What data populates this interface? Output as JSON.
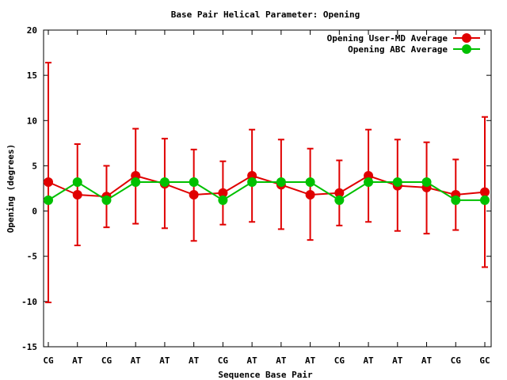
{
  "chart_data": {
    "type": "line",
    "title": "Base Pair Helical Parameter: Opening",
    "xlabel": "Sequence Base Pair",
    "ylabel": "Opening (degrees)",
    "ylim": [
      -15,
      20
    ],
    "yticks": [
      -15,
      -10,
      -5,
      0,
      5,
      10,
      15,
      20
    ],
    "categories": [
      "CG",
      "AT",
      "CG",
      "AT",
      "AT",
      "AT",
      "CG",
      "AT",
      "AT",
      "AT",
      "CG",
      "AT",
      "AT",
      "AT",
      "CG",
      "GC"
    ],
    "grid": false,
    "legend_position": "top-right",
    "series": [
      {
        "name": "Opening User-MD Average",
        "color": "#e00000",
        "marker": "circle",
        "values": [
          3.2,
          1.8,
          1.6,
          3.9,
          3.0,
          1.8,
          2.0,
          3.9,
          2.9,
          1.8,
          2.0,
          3.9,
          2.8,
          2.6,
          1.8,
          2.1
        ],
        "error_low": [
          -10.1,
          -3.8,
          -1.8,
          -1.4,
          -1.9,
          -3.3,
          -1.5,
          -1.2,
          -2.0,
          -3.2,
          -1.6,
          -1.2,
          -2.2,
          -2.5,
          -2.1,
          -6.2
        ],
        "error_high": [
          16.4,
          7.4,
          5.0,
          9.1,
          8.0,
          6.8,
          5.5,
          9.0,
          7.9,
          6.9,
          5.6,
          9.0,
          7.9,
          7.6,
          5.7,
          10.4
        ]
      },
      {
        "name": "Opening ABC Average",
        "color": "#00c000",
        "marker": "circle",
        "values": [
          1.2,
          3.2,
          1.2,
          3.2,
          3.2,
          3.2,
          1.2,
          3.2,
          3.2,
          3.2,
          1.2,
          3.2,
          3.2,
          3.2,
          1.2,
          1.2
        ]
      }
    ]
  }
}
